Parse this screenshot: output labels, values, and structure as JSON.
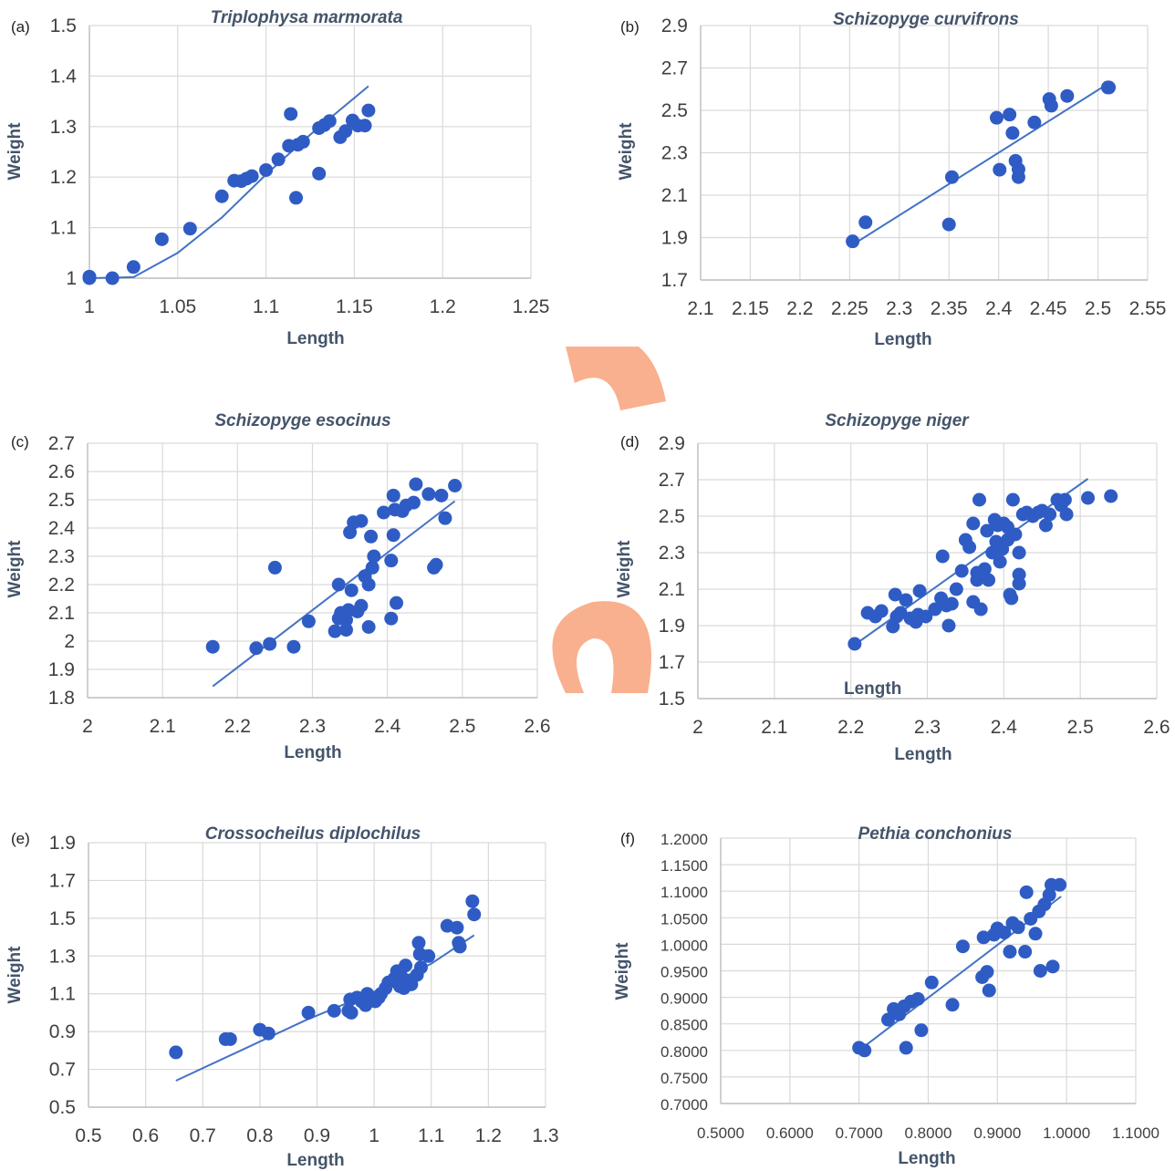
{
  "figure": {
    "watermark_color": "#F8A27A",
    "axis_title_color": "#44546A",
    "tick_color": "#404040",
    "grid_color": "#D9D9D9",
    "point_color": "#2F5CC4",
    "line_color": "#4472C4"
  },
  "chart_data": [
    {
      "panel": "(a)",
      "type": "scatter",
      "title": "Triplophysa marmorata",
      "xlabel": "Length",
      "ylabel": "Weight",
      "xlim": [
        1,
        1.25
      ],
      "ylim": [
        1,
        1.5
      ],
      "xticks": [
        "1",
        "1.05",
        "1.1",
        "1.15",
        "1.2",
        "1.25"
      ],
      "yticks": [
        "1",
        "1.1",
        "1.2",
        "1.3",
        "1.4",
        "1.5"
      ],
      "grid": true,
      "points": [
        [
          1.0,
          1.0
        ],
        [
          1.0,
          1.003
        ],
        [
          1.013,
          1.0
        ],
        [
          1.025,
          1.022
        ],
        [
          1.041,
          1.077
        ],
        [
          1.057,
          1.098
        ],
        [
          1.075,
          1.162
        ],
        [
          1.082,
          1.193
        ],
        [
          1.086,
          1.192
        ],
        [
          1.089,
          1.197
        ],
        [
          1.092,
          1.202
        ],
        [
          1.1,
          1.214
        ],
        [
          1.107,
          1.235
        ],
        [
          1.113,
          1.262
        ],
        [
          1.114,
          1.325
        ],
        [
          1.118,
          1.264
        ],
        [
          1.117,
          1.159
        ],
        [
          1.121,
          1.27
        ],
        [
          1.13,
          1.207
        ],
        [
          1.13,
          1.297
        ],
        [
          1.133,
          1.303
        ],
        [
          1.136,
          1.311
        ],
        [
          1.142,
          1.279
        ],
        [
          1.145,
          1.291
        ],
        [
          1.149,
          1.312
        ],
        [
          1.152,
          1.302
        ],
        [
          1.156,
          1.302
        ],
        [
          1.158,
          1.332
        ]
      ],
      "fit": [
        [
          1.0,
          1.0
        ],
        [
          1.025,
          1.002
        ],
        [
          1.05,
          1.05
        ],
        [
          1.075,
          1.12
        ],
        [
          1.1,
          1.205
        ],
        [
          1.125,
          1.284
        ],
        [
          1.158,
          1.38
        ]
      ]
    },
    {
      "panel": "(b)",
      "type": "scatter",
      "title": "Schizopyge curvifrons",
      "xlabel": "Length",
      "ylabel": "Weight",
      "xlim": [
        2.1,
        2.55
      ],
      "ylim": [
        1.7,
        2.9
      ],
      "xticks": [
        "2.1",
        "2.15",
        "2.2",
        "2.25",
        "2.3",
        "2.35",
        "2.4",
        "2.45",
        "2.5",
        "2.55"
      ],
      "yticks": [
        "1.7",
        "1.9",
        "2.1",
        "2.3",
        "2.5",
        "2.7",
        "2.9"
      ],
      "grid": true,
      "points": [
        [
          2.253,
          1.882
        ],
        [
          2.266,
          1.972
        ],
        [
          2.35,
          1.962
        ],
        [
          2.353,
          2.185
        ],
        [
          2.398,
          2.465
        ],
        [
          2.401,
          2.22
        ],
        [
          2.411,
          2.48
        ],
        [
          2.414,
          2.393
        ],
        [
          2.417,
          2.262
        ],
        [
          2.42,
          2.222
        ],
        [
          2.42,
          2.185
        ],
        [
          2.436,
          2.443
        ],
        [
          2.451,
          2.553
        ],
        [
          2.453,
          2.522
        ],
        [
          2.469,
          2.568
        ],
        [
          2.51,
          2.608
        ],
        [
          2.511,
          2.608
        ]
      ],
      "fit": [
        [
          2.255,
          1.872
        ],
        [
          2.51,
          2.625
        ]
      ]
    },
    {
      "panel": "(c)",
      "type": "scatter",
      "title": "Schizopyge esocinus",
      "xlabel": "Length",
      "ylabel": "Weight",
      "xlim": [
        2,
        2.6
      ],
      "ylim": [
        1.8,
        2.7
      ],
      "xticks": [
        "2",
        "2.1",
        "2.2",
        "2.3",
        "2.4",
        "2.5",
        "2.6"
      ],
      "yticks": [
        "1.8",
        "1.9",
        "2",
        "2.1",
        "2.2",
        "2.3",
        "2.4",
        "2.5",
        "2.6",
        "2.7"
      ],
      "grid": true,
      "points": [
        [
          2.167,
          1.98
        ],
        [
          2.225,
          1.975
        ],
        [
          2.243,
          1.99
        ],
        [
          2.25,
          2.26
        ],
        [
          2.275,
          1.98
        ],
        [
          2.295,
          2.07
        ],
        [
          2.33,
          2.035
        ],
        [
          2.335,
          2.08
        ],
        [
          2.335,
          2.2
        ],
        [
          2.338,
          2.1
        ],
        [
          2.345,
          2.04
        ],
        [
          2.345,
          2.075
        ],
        [
          2.348,
          2.11
        ],
        [
          2.35,
          2.385
        ],
        [
          2.352,
          2.18
        ],
        [
          2.355,
          2.42
        ],
        [
          2.36,
          2.105
        ],
        [
          2.365,
          2.425
        ],
        [
          2.365,
          2.125
        ],
        [
          2.37,
          2.23
        ],
        [
          2.375,
          2.05
        ],
        [
          2.375,
          2.2
        ],
        [
          2.378,
          2.37
        ],
        [
          2.38,
          2.26
        ],
        [
          2.382,
          2.3
        ],
        [
          2.395,
          2.455
        ],
        [
          2.405,
          2.285
        ],
        [
          2.405,
          2.08
        ],
        [
          2.408,
          2.375
        ],
        [
          2.408,
          2.515
        ],
        [
          2.41,
          2.465
        ],
        [
          2.412,
          2.135
        ],
        [
          2.42,
          2.46
        ],
        [
          2.425,
          2.48
        ],
        [
          2.435,
          2.49
        ],
        [
          2.438,
          2.555
        ],
        [
          2.455,
          2.52
        ],
        [
          2.462,
          2.26
        ],
        [
          2.465,
          2.27
        ],
        [
          2.472,
          2.515
        ],
        [
          2.477,
          2.435
        ],
        [
          2.49,
          2.55
        ]
      ],
      "fit": [
        [
          2.167,
          1.84
        ],
        [
          2.49,
          2.495
        ]
      ]
    },
    {
      "panel": "(d)",
      "type": "scatter",
      "title": "Schizopyge niger",
      "xlabel": "Length",
      "ylabel": "Weight",
      "xlim": [
        2,
        2.6
      ],
      "ylim": [
        1.5,
        2.9
      ],
      "xticks": [
        "2",
        "2.1",
        "2.2",
        "2.3",
        "2.4",
        "2.5",
        "2.6"
      ],
      "yticks": [
        "1.5",
        "1.7",
        "1.9",
        "2.1",
        "2.3",
        "2.5",
        "2.7",
        "2.9"
      ],
      "grid": true,
      "inner_label": "Length",
      "points": [
        [
          2.205,
          1.8
        ],
        [
          2.222,
          1.97
        ],
        [
          2.232,
          1.95
        ],
        [
          2.24,
          1.98
        ],
        [
          2.255,
          1.895
        ],
        [
          2.258,
          2.07
        ],
        [
          2.26,
          1.95
        ],
        [
          2.265,
          1.97
        ],
        [
          2.272,
          2.04
        ],
        [
          2.278,
          1.94
        ],
        [
          2.285,
          1.92
        ],
        [
          2.288,
          1.96
        ],
        [
          2.29,
          2.09
        ],
        [
          2.298,
          1.95
        ],
        [
          2.31,
          1.99
        ],
        [
          2.318,
          2.05
        ],
        [
          2.32,
          2.28
        ],
        [
          2.325,
          2.01
        ],
        [
          2.328,
          1.9
        ],
        [
          2.332,
          2.02
        ],
        [
          2.338,
          2.1
        ],
        [
          2.345,
          2.2
        ],
        [
          2.35,
          2.37
        ],
        [
          2.355,
          2.33
        ],
        [
          2.36,
          2.03
        ],
        [
          2.36,
          2.46
        ],
        [
          2.365,
          2.15
        ],
        [
          2.365,
          2.19
        ],
        [
          2.368,
          2.59
        ],
        [
          2.37,
          1.99
        ],
        [
          2.375,
          2.21
        ],
        [
          2.38,
          2.15
        ],
        [
          2.378,
          2.42
        ],
        [
          2.385,
          2.3
        ],
        [
          2.388,
          2.48
        ],
        [
          2.39,
          2.36
        ],
        [
          2.392,
          2.45
        ],
        [
          2.395,
          2.25
        ],
        [
          2.398,
          2.32
        ],
        [
          2.4,
          2.46
        ],
        [
          2.405,
          2.37
        ],
        [
          2.405,
          2.44
        ],
        [
          2.408,
          2.07
        ],
        [
          2.41,
          2.05
        ],
        [
          2.412,
          2.59
        ],
        [
          2.415,
          2.4
        ],
        [
          2.42,
          2.3
        ],
        [
          2.42,
          2.13
        ],
        [
          2.42,
          2.18
        ],
        [
          2.425,
          2.51
        ],
        [
          2.43,
          2.52
        ],
        [
          2.438,
          2.5
        ],
        [
          2.445,
          2.52
        ],
        [
          2.45,
          2.53
        ],
        [
          2.455,
          2.45
        ],
        [
          2.46,
          2.51
        ],
        [
          2.47,
          2.59
        ],
        [
          2.475,
          2.56
        ],
        [
          2.48,
          2.59
        ],
        [
          2.482,
          2.51
        ],
        [
          2.51,
          2.6
        ],
        [
          2.54,
          2.61
        ]
      ],
      "fit": [
        [
          2.205,
          1.795
        ],
        [
          2.51,
          2.705
        ]
      ]
    },
    {
      "panel": "(e)",
      "type": "scatter",
      "title": "Crossocheilus diplochilus",
      "xlabel": "Length",
      "ylabel": "Weight",
      "xlim": [
        0.5,
        1.3
      ],
      "ylim": [
        0.5,
        1.9
      ],
      "xticks": [
        "0.5",
        "0.6",
        "0.7",
        "0.8",
        "0.9",
        "1",
        "1.1",
        "1.2",
        "1.3"
      ],
      "yticks": [
        "0.5",
        "0.7",
        "0.9",
        "1.1",
        "1.3",
        "1.5",
        "1.7",
        "1.9"
      ],
      "grid": true,
      "points": [
        [
          0.653,
          0.79
        ],
        [
          0.74,
          0.86
        ],
        [
          0.748,
          0.86
        ],
        [
          0.8,
          0.91
        ],
        [
          0.815,
          0.89
        ],
        [
          0.885,
          1.0
        ],
        [
          0.93,
          1.01
        ],
        [
          0.955,
          1.01
        ],
        [
          0.958,
          1.07
        ],
        [
          0.96,
          1.0
        ],
        [
          0.97,
          1.08
        ],
        [
          0.978,
          1.06
        ],
        [
          0.985,
          1.04
        ],
        [
          0.988,
          1.1
        ],
        [
          0.995,
          1.08
        ],
        [
          1.002,
          1.06
        ],
        [
          1.008,
          1.08
        ],
        [
          1.012,
          1.1
        ],
        [
          1.02,
          1.13
        ],
        [
          1.025,
          1.16
        ],
        [
          1.035,
          1.18
        ],
        [
          1.04,
          1.22
        ],
        [
          1.045,
          1.14
        ],
        [
          1.048,
          1.19
        ],
        [
          1.052,
          1.13
        ],
        [
          1.055,
          1.25
        ],
        [
          1.06,
          1.17
        ],
        [
          1.065,
          1.15
        ],
        [
          1.075,
          1.2
        ],
        [
          1.078,
          1.37
        ],
        [
          1.08,
          1.31
        ],
        [
          1.082,
          1.24
        ],
        [
          1.095,
          1.3
        ],
        [
          1.128,
          1.46
        ],
        [
          1.145,
          1.45
        ],
        [
          1.148,
          1.37
        ],
        [
          1.15,
          1.35
        ],
        [
          1.172,
          1.59
        ],
        [
          1.175,
          1.52
        ]
      ],
      "fit": [
        [
          0.653,
          0.64
        ],
        [
          0.88,
          0.96
        ],
        [
          1.0,
          1.11
        ],
        [
          1.1,
          1.26
        ],
        [
          1.175,
          1.41
        ]
      ]
    },
    {
      "panel": "(f)",
      "type": "scatter",
      "title": "Pethia conchonius",
      "xlabel": "Length",
      "ylabel": "Weight",
      "xlim": [
        0.5,
        1.1
      ],
      "ylim": [
        0.7,
        1.2
      ],
      "xticks": [
        "0.5000",
        "0.6000",
        "0.7000",
        "0.8000",
        "0.9000",
        "1.0000",
        "1.1000"
      ],
      "yticks": [
        "0.7000",
        "0.7500",
        "0.8000",
        "0.8500",
        "0.9000",
        "0.9500",
        "1.0000",
        "1.0500",
        "1.1000",
        "1.1500",
        "1.2000"
      ],
      "grid": true,
      "points": [
        [
          0.7,
          0.805
        ],
        [
          0.708,
          0.8
        ],
        [
          0.742,
          0.858
        ],
        [
          0.75,
          0.878
        ],
        [
          0.758,
          0.868
        ],
        [
          0.765,
          0.883
        ],
        [
          0.768,
          0.805
        ],
        [
          0.775,
          0.892
        ],
        [
          0.785,
          0.897
        ],
        [
          0.79,
          0.838
        ],
        [
          0.805,
          0.928
        ],
        [
          0.835,
          0.886
        ],
        [
          0.85,
          0.996
        ],
        [
          0.878,
          0.938
        ],
        [
          0.88,
          1.013
        ],
        [
          0.885,
          0.948
        ],
        [
          0.888,
          0.913
        ],
        [
          0.895,
          1.018
        ],
        [
          0.9,
          1.03
        ],
        [
          0.91,
          1.022
        ],
        [
          0.918,
          0.986
        ],
        [
          0.922,
          1.04
        ],
        [
          0.93,
          1.032
        ],
        [
          0.94,
          0.986
        ],
        [
          0.942,
          1.098
        ],
        [
          0.948,
          1.048
        ],
        [
          0.955,
          1.02
        ],
        [
          0.96,
          1.062
        ],
        [
          0.962,
          0.95
        ],
        [
          0.968,
          1.075
        ],
        [
          0.975,
          1.093
        ],
        [
          0.978,
          1.112
        ],
        [
          0.98,
          0.958
        ],
        [
          0.99,
          1.112
        ]
      ],
      "fit": [
        [
          0.7,
          0.8
        ],
        [
          0.992,
          1.09
        ]
      ]
    }
  ]
}
